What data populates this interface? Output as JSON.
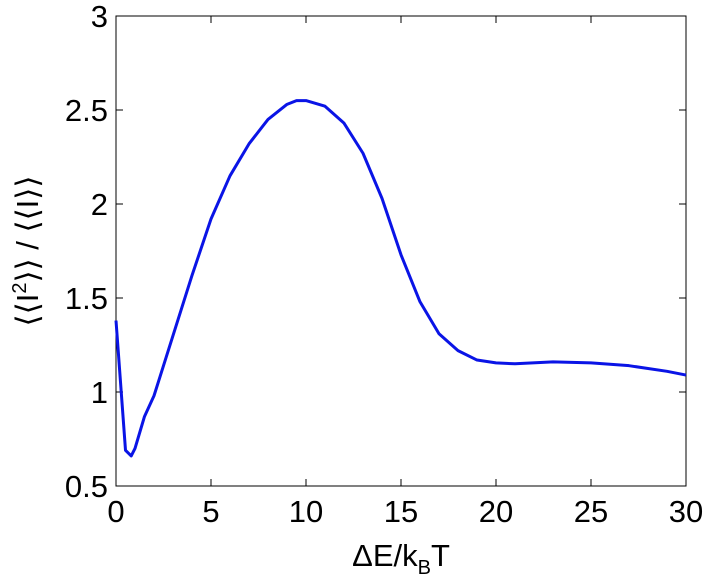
{
  "chart_data": {
    "type": "line",
    "xlabel": [
      "ΔE/k",
      "B",
      "T"
    ],
    "ylabel": [
      "⟨⟨I",
      "2",
      "⟩⟩ / ⟨⟨I⟩⟩"
    ],
    "x": [
      0,
      0.5,
      0.8,
      1,
      1.5,
      2,
      3,
      4,
      5,
      6,
      7,
      8,
      9,
      9.5,
      10,
      11,
      12,
      13,
      14,
      15,
      16,
      17,
      18,
      19,
      20,
      21,
      23,
      25,
      27,
      29,
      30
    ],
    "series": [
      {
        "color": "#0a14e6",
        "values": [
          1.38,
          0.69,
          0.66,
          0.7,
          0.87,
          0.98,
          1.3,
          1.62,
          1.92,
          2.15,
          2.32,
          2.45,
          2.53,
          2.55,
          2.55,
          2.52,
          2.43,
          2.27,
          2.03,
          1.73,
          1.48,
          1.31,
          1.22,
          1.17,
          1.155,
          1.15,
          1.16,
          1.155,
          1.14,
          1.11,
          1.09
        ]
      }
    ],
    "xlim": [
      0,
      30
    ],
    "xticks": [
      0,
      5,
      10,
      15,
      20,
      25,
      30
    ],
    "ylim": [
      0.5,
      3
    ],
    "yticks": [
      0.5,
      1,
      1.5,
      2,
      2.5,
      3
    ],
    "grid": false
  }
}
